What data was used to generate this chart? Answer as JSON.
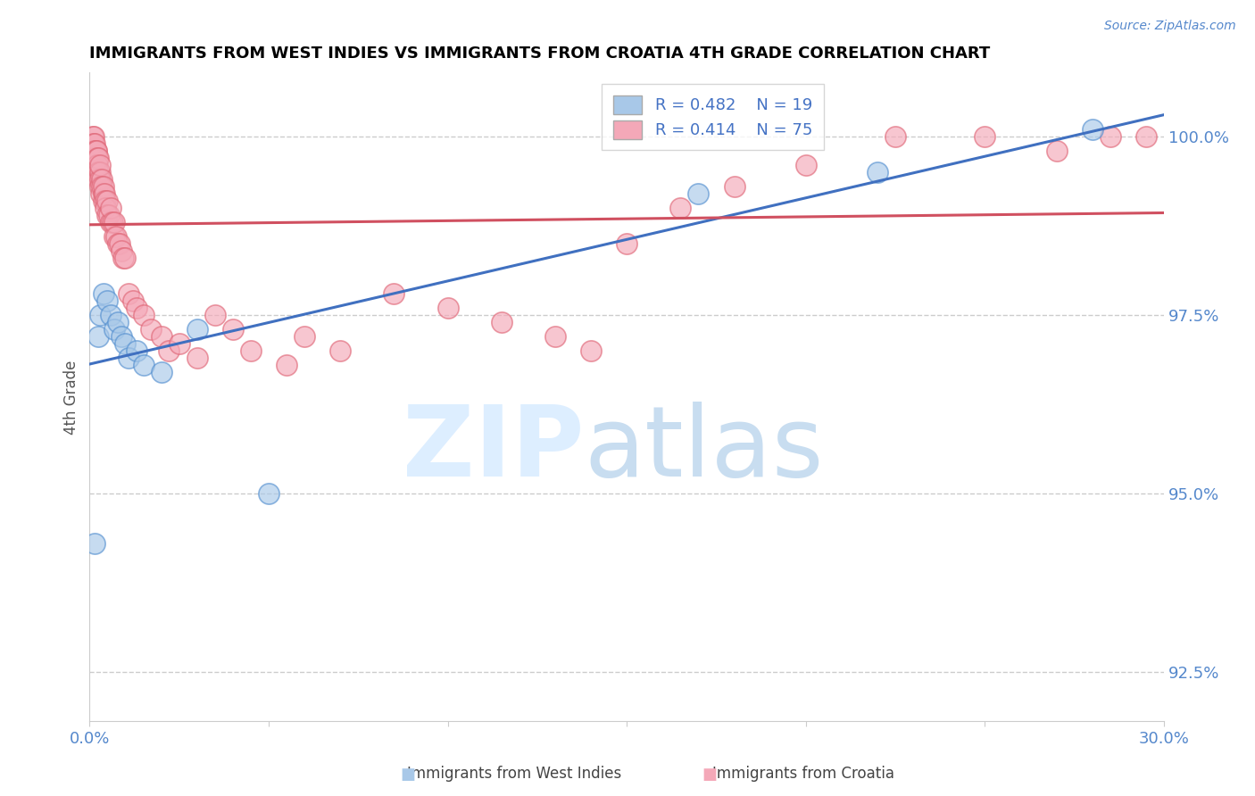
{
  "title": "IMMIGRANTS FROM WEST INDIES VS IMMIGRANTS FROM CROATIA 4TH GRADE CORRELATION CHART",
  "source": "Source: ZipAtlas.com",
  "ylabel": "4th Grade",
  "yticks": [
    92.5,
    95.0,
    97.5,
    100.0
  ],
  "ytick_labels": [
    "92.5%",
    "95.0%",
    "97.5%",
    "100.0%"
  ],
  "xmin": 0.0,
  "xmax": 30.0,
  "ymin": 91.8,
  "ymax": 100.9,
  "legend_blue_r": "R = 0.482",
  "legend_blue_n": "N = 19",
  "legend_pink_r": "R = 0.414",
  "legend_pink_n": "N = 75",
  "blue_color": "#a8c8e8",
  "pink_color": "#f4a8b8",
  "blue_edge_color": "#5590d0",
  "pink_edge_color": "#e06878",
  "blue_line_color": "#4070c0",
  "pink_line_color": "#d05060",
  "watermark_zip": "ZIP",
  "watermark_atlas": "atlas",
  "blue_scatter_x": [
    0.15,
    0.25,
    0.3,
    0.4,
    0.5,
    0.6,
    0.7,
    0.8,
    0.9,
    1.0,
    1.1,
    1.3,
    1.5,
    2.0,
    3.0,
    5.0,
    17.0,
    22.0,
    28.0
  ],
  "blue_scatter_y": [
    94.3,
    97.2,
    97.5,
    97.8,
    97.7,
    97.5,
    97.3,
    97.4,
    97.2,
    97.1,
    96.9,
    97.0,
    96.8,
    96.7,
    97.3,
    95.0,
    99.2,
    99.5,
    100.1
  ],
  "pink_scatter_x": [
    0.05,
    0.08,
    0.1,
    0.1,
    0.1,
    0.12,
    0.12,
    0.15,
    0.15,
    0.15,
    0.18,
    0.2,
    0.2,
    0.2,
    0.22,
    0.22,
    0.25,
    0.25,
    0.25,
    0.28,
    0.3,
    0.3,
    0.3,
    0.32,
    0.35,
    0.35,
    0.38,
    0.4,
    0.4,
    0.42,
    0.45,
    0.45,
    0.5,
    0.5,
    0.55,
    0.6,
    0.6,
    0.65,
    0.7,
    0.7,
    0.75,
    0.8,
    0.85,
    0.9,
    0.95,
    1.0,
    1.1,
    1.2,
    1.3,
    1.5,
    1.7,
    2.0,
    2.2,
    2.5,
    3.0,
    3.5,
    4.0,
    4.5,
    5.5,
    6.0,
    7.0,
    8.5,
    10.0,
    11.5,
    13.0,
    14.0,
    15.0,
    16.5,
    18.0,
    20.0,
    22.5,
    25.0,
    27.0,
    28.5,
    29.5
  ],
  "pink_scatter_y": [
    99.8,
    99.9,
    100.0,
    99.8,
    99.7,
    100.0,
    99.9,
    99.9,
    99.8,
    99.7,
    99.8,
    99.8,
    99.6,
    99.5,
    99.7,
    99.6,
    99.7,
    99.5,
    99.4,
    99.5,
    99.4,
    99.6,
    99.3,
    99.2,
    99.4,
    99.3,
    99.2,
    99.3,
    99.1,
    99.2,
    99.1,
    99.0,
    99.1,
    98.9,
    98.9,
    98.8,
    99.0,
    98.8,
    98.6,
    98.8,
    98.6,
    98.5,
    98.5,
    98.4,
    98.3,
    98.3,
    97.8,
    97.7,
    97.6,
    97.5,
    97.3,
    97.2,
    97.0,
    97.1,
    96.9,
    97.5,
    97.3,
    97.0,
    96.8,
    97.2,
    97.0,
    97.8,
    97.6,
    97.4,
    97.2,
    97.0,
    98.5,
    99.0,
    99.3,
    99.6,
    100.0,
    100.0,
    99.8,
    100.0,
    100.0
  ]
}
